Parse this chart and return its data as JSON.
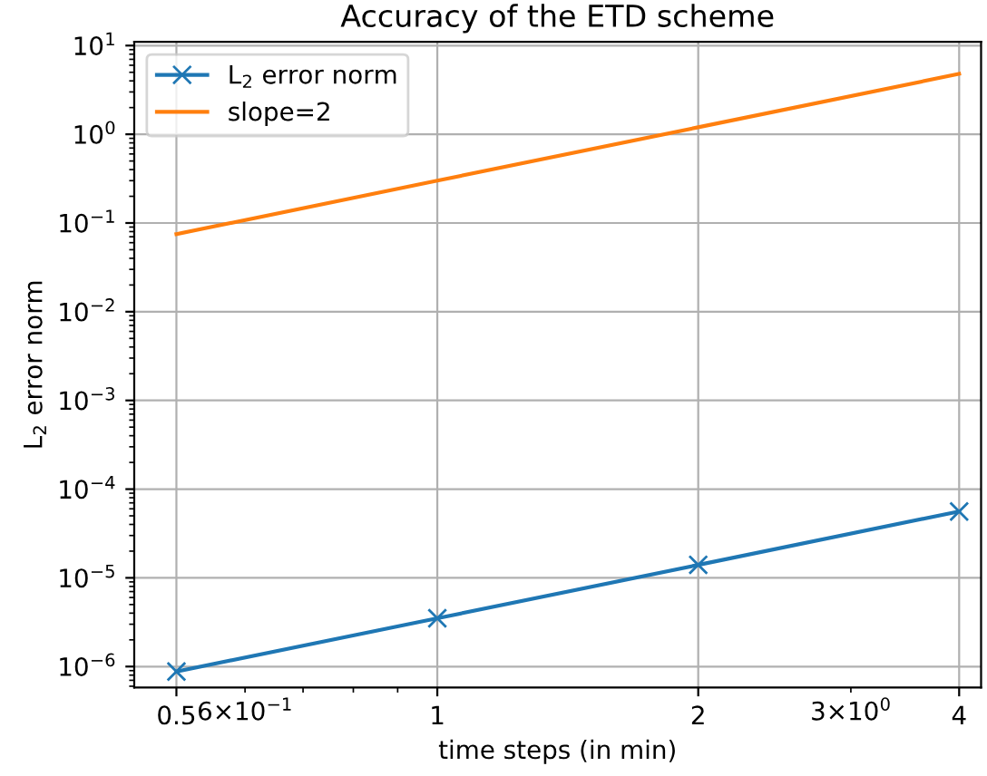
{
  "chart_data": {
    "type": "line",
    "title": "Accuracy of the ETD scheme",
    "xlabel": "time steps (in min)",
    "ylabel": "L$_{2}$ error norm",
    "log": "xy",
    "grid": true,
    "legend": "top left",
    "x": [
      0.5,
      1,
      2,
      4
    ],
    "series": [
      {
        "name": "L$_{2}$ error norm",
        "color": "#1f77b4",
        "marker": "cross",
        "values": [
          8.8e-07,
          3.5e-06,
          1.4e-05,
          5.6e-05
        ]
      },
      {
        "name": "slope=2",
        "color": "#ff7f0e",
        "marker": "none",
        "values": [
          0.075,
          0.3,
          1.2,
          4.8
        ]
      }
    ],
    "xlim": [
      0.447,
      4.24
    ],
    "ylim": [
      5.8e-07,
      11
    ],
    "xticks": [
      0.5,
      {
        "value": 0.6,
        "label": "6×10$^{−1}$"
      },
      {
        "value": 0.7,
        "label": null
      },
      {
        "value": 0.8,
        "label": null
      },
      {
        "value": 0.9,
        "label": null
      },
      1,
      2,
      {
        "value": 3,
        "label": "3×10$^{0}$"
      },
      4
    ],
    "yticks": [
      {
        "value": 1e-06,
        "label": "10$^{−6}$"
      },
      {
        "value": 1e-05,
        "label": "10$^{−5}$"
      },
      {
        "value": 0.0001,
        "label": "10$^{−4}$"
      },
      {
        "value": 0.001,
        "label": "10$^{−3}$"
      },
      {
        "value": 0.01,
        "label": "10$^{−2}$"
      },
      {
        "value": 0.1,
        "label": "10$^{−1}$"
      },
      {
        "value": 1,
        "label": "10$^{0}$"
      },
      {
        "value": 10,
        "label": "10$^{1}$"
      }
    ]
  }
}
